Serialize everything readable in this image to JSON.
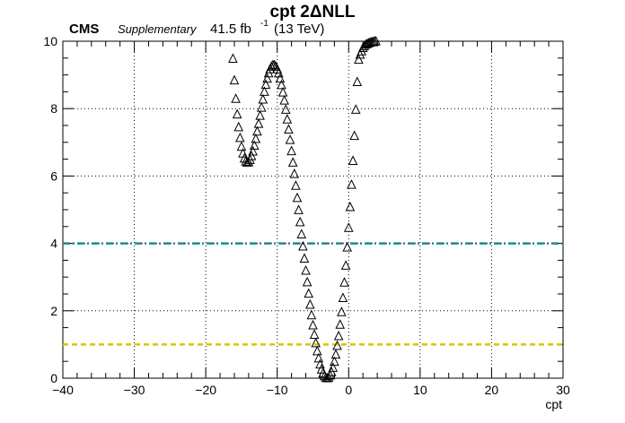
{
  "header": {
    "experiment": "CMS",
    "tag": "Supplementary",
    "lumi": "41.5 fb",
    "lumi_exp": "-1",
    "energy": "(13 TeV)"
  },
  "chart_data": {
    "type": "scatter",
    "title": "cpt 2ΔNLL",
    "xlabel": "cpt",
    "ylabel": "",
    "xlim": [
      -40,
      30
    ],
    "ylim": [
      0,
      10
    ],
    "xticks": [
      "−40",
      "−30",
      "−20",
      "−10",
      "0",
      "10",
      "20",
      "30"
    ],
    "yticks": [
      "0",
      "2",
      "4",
      "6",
      "8",
      "10"
    ],
    "xtick_values": [
      -40,
      -30,
      -20,
      -10,
      0,
      10,
      20,
      30
    ],
    "ytick_values": [
      0,
      2,
      4,
      6,
      8,
      10
    ],
    "grid": true,
    "marker": "open-triangle",
    "series": [
      {
        "x": [
          -16.2,
          -16.0,
          -15.8,
          -15.6,
          -15.4,
          -15.2,
          -15.0,
          -14.8,
          -14.6,
          -14.4,
          -14.2,
          -14.0,
          -13.8,
          -13.6,
          -13.4,
          -13.2,
          -13.0,
          -12.8,
          -12.6,
          -12.4,
          -12.2,
          -12.0,
          -11.8,
          -11.6,
          -11.4,
          -11.2,
          -11.0,
          -10.8,
          -10.6,
          -10.4,
          -10.2,
          -10.0,
          -9.8,
          -9.6,
          -9.4,
          -9.2,
          -9.0,
          -8.8,
          -8.6,
          -8.4,
          -8.2,
          -8.0,
          -7.8,
          -7.6,
          -7.4,
          -7.2,
          -7.0,
          -6.8,
          -6.6,
          -6.4,
          -6.2,
          -6.0,
          -5.8,
          -5.6,
          -5.4,
          -5.2,
          -5.0,
          -4.8,
          -4.6,
          -4.4,
          -4.2,
          -4.0,
          -3.8,
          -3.6,
          -3.4,
          -3.2,
          -3.0,
          -2.8,
          -2.6,
          -2.4,
          -2.2,
          -2.0,
          -1.8,
          -1.6,
          -1.4,
          -1.2,
          -1.0,
          -0.8,
          -0.6,
          -0.4,
          -0.2,
          0.0,
          0.2,
          0.4,
          0.6,
          0.8,
          1.0,
          1.2,
          1.4,
          1.6,
          1.8,
          2.0,
          2.2,
          2.4,
          2.6,
          2.8,
          3.0,
          3.2,
          3.4,
          3.6,
          3.8
        ],
        "y": [
          9.48,
          8.84,
          8.29,
          7.83,
          7.45,
          7.13,
          6.87,
          6.67,
          6.52,
          6.43,
          6.4,
          6.41,
          6.48,
          6.59,
          6.73,
          6.9,
          7.1,
          7.32,
          7.55,
          7.79,
          8.03,
          8.27,
          8.5,
          8.71,
          8.89,
          9.05,
          9.17,
          9.25,
          9.29,
          9.29,
          9.25,
          9.17,
          9.05,
          8.89,
          8.7,
          8.48,
          8.24,
          7.97,
          7.68,
          7.38,
          7.07,
          6.74,
          6.4,
          6.06,
          5.71,
          5.35,
          4.99,
          4.63,
          4.27,
          3.91,
          3.55,
          3.19,
          2.85,
          2.51,
          2.18,
          1.87,
          1.57,
          1.29,
          1.04,
          0.8,
          0.59,
          0.41,
          0.26,
          0.14,
          0.06,
          0.01,
          0.0,
          0.02,
          0.08,
          0.18,
          0.31,
          0.49,
          0.7,
          0.96,
          1.25,
          1.59,
          1.96,
          2.38,
          2.84,
          3.34,
          3.88,
          4.46,
          5.08,
          5.74,
          6.45,
          7.19,
          7.97,
          8.79,
          9.45,
          9.6,
          9.7,
          9.8,
          9.85,
          9.9,
          9.92,
          9.94,
          9.96,
          9.97,
          9.98,
          9.99,
          10.0
        ]
      }
    ],
    "reference_lines": [
      {
        "y": 4.0,
        "color": "#1f8a8a",
        "style": "dash-dot"
      },
      {
        "y": 1.0,
        "color": "#d4c800",
        "style": "dashed"
      }
    ]
  }
}
